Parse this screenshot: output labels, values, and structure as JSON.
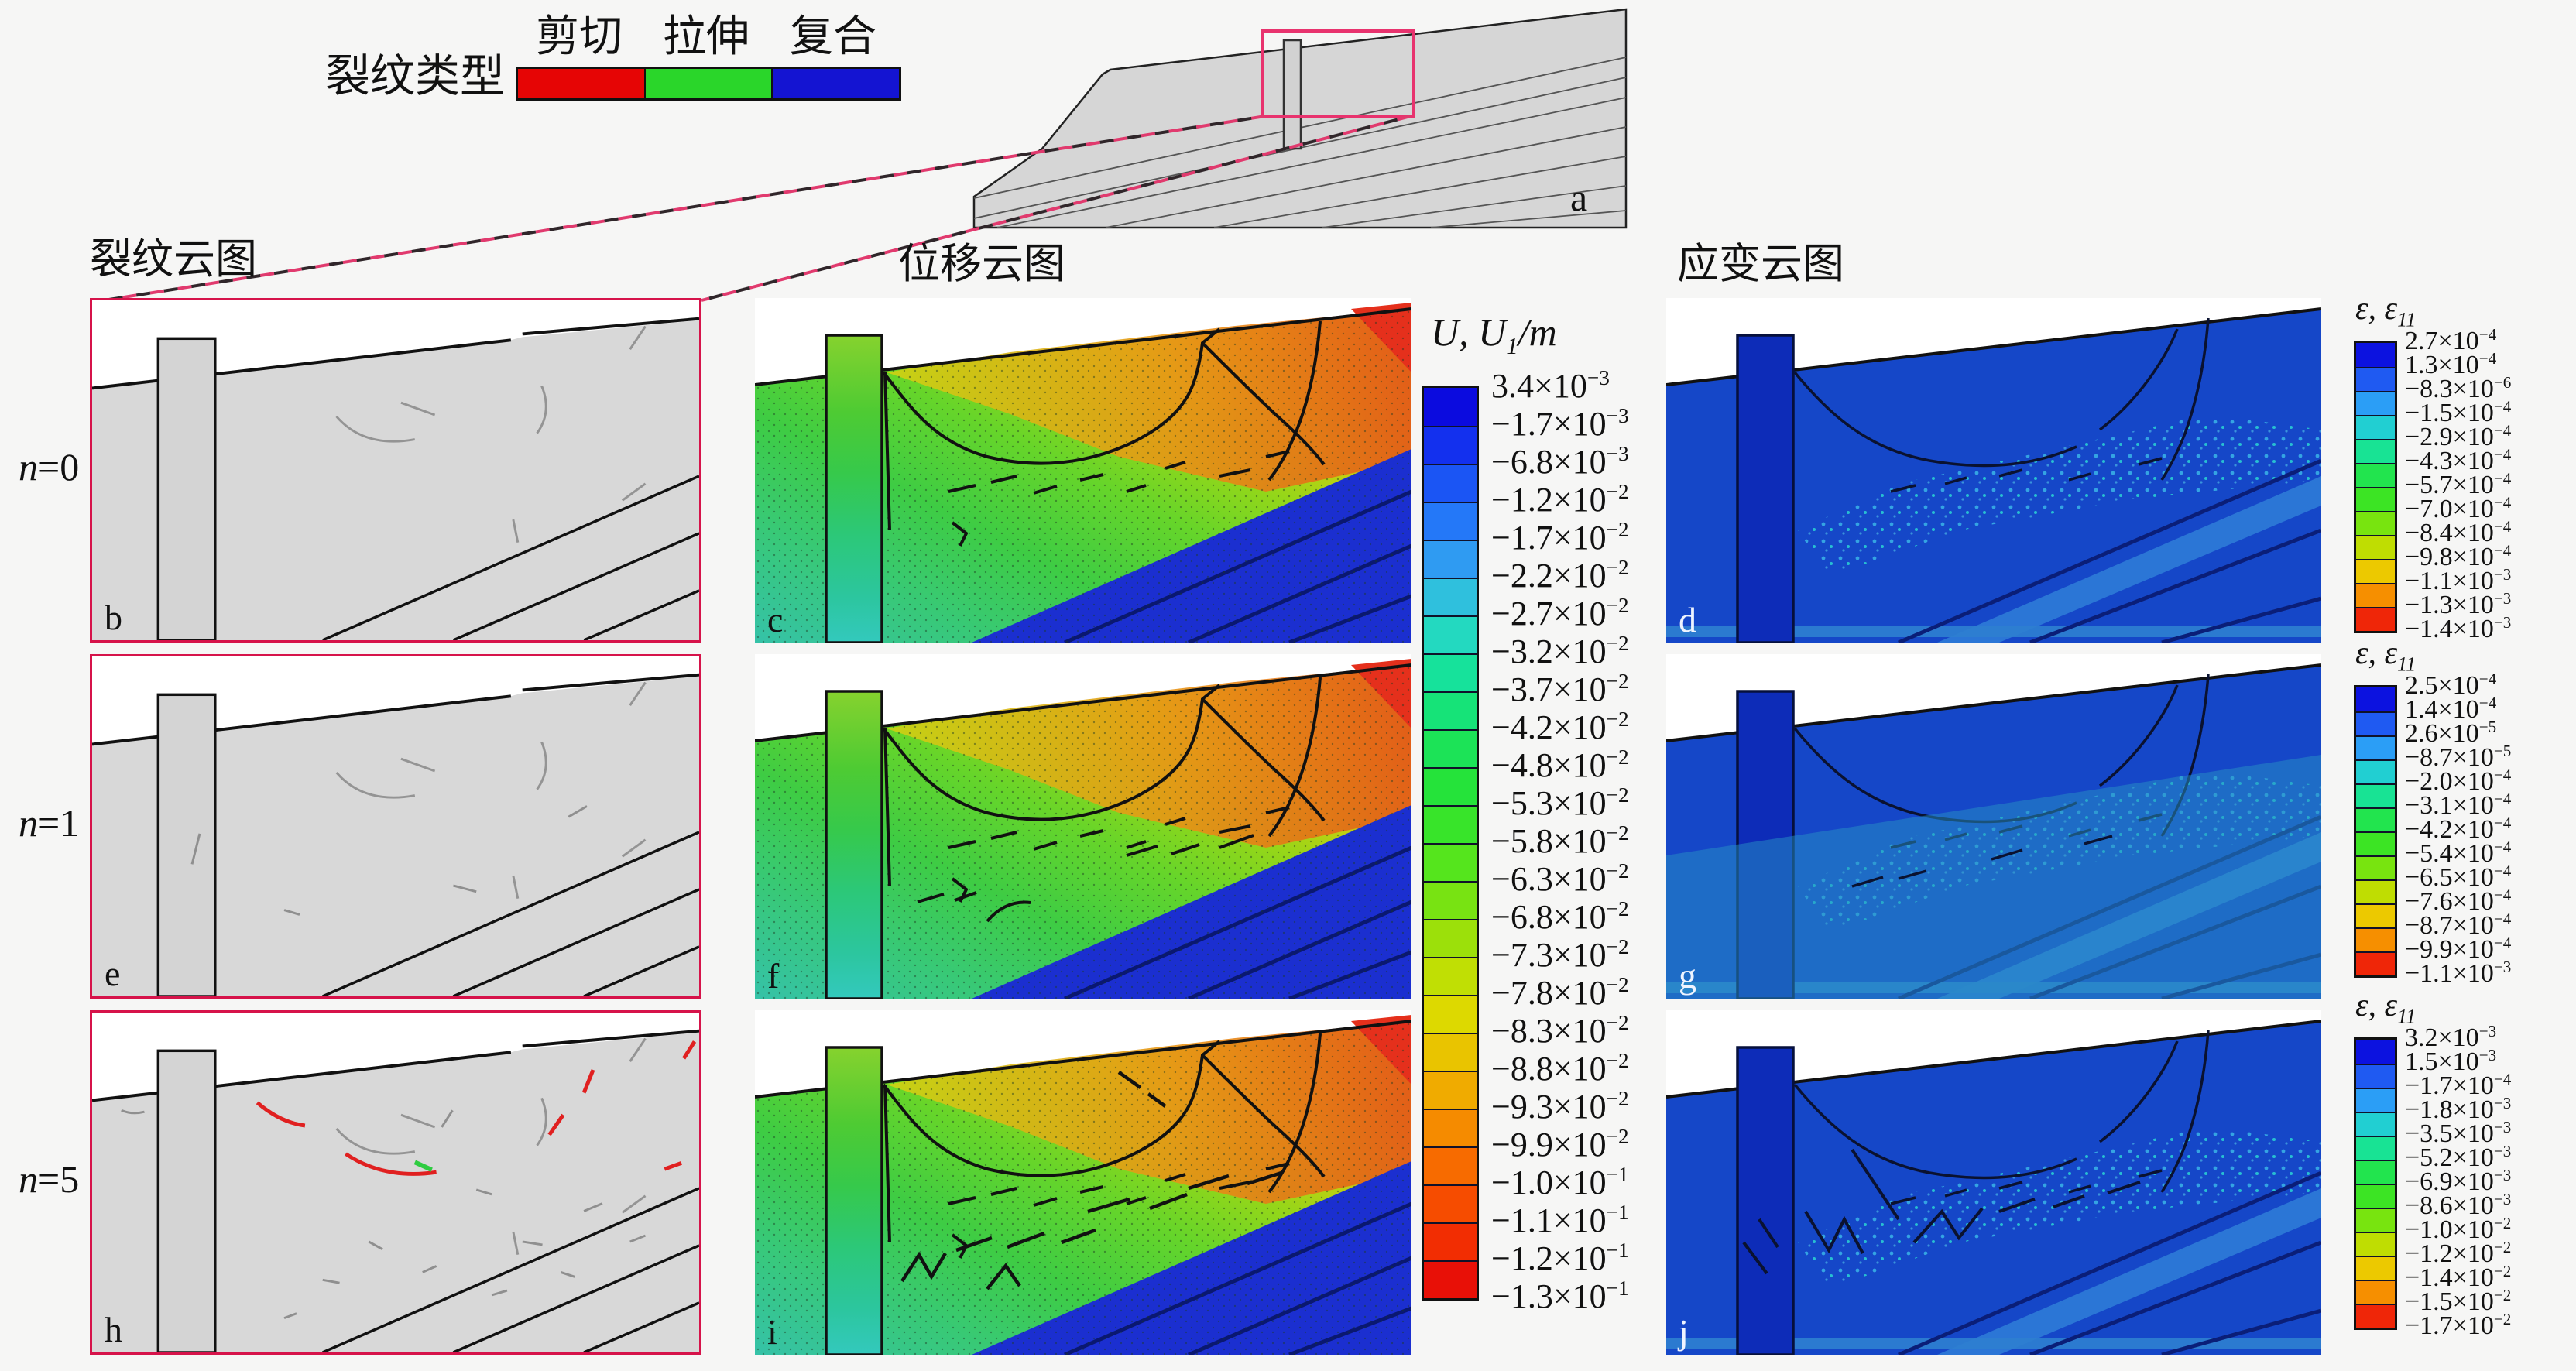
{
  "crack_type_legend": {
    "title": "裂纹类型",
    "items": [
      {
        "label": "剪切",
        "color": "#e60505"
      },
      {
        "label": "拉伸",
        "color": "#2ad62a"
      },
      {
        "label": "复合",
        "color": "#1414d2"
      }
    ]
  },
  "overview": {
    "label": "a"
  },
  "column_titles": {
    "crack": "裂纹云图",
    "displacement": "位移云图",
    "strain": "应变云图"
  },
  "row_labels": [
    {
      "sym": "n",
      "eq": "=0"
    },
    {
      "sym": "n",
      "eq": "=1"
    },
    {
      "sym": "n",
      "eq": "=5"
    }
  ],
  "panel_labels": {
    "crack": [
      "b",
      "e",
      "h"
    ],
    "displacement": [
      "c",
      "f",
      "i"
    ],
    "strain": [
      "d",
      "g",
      "j"
    ]
  },
  "displacement_colorbar": {
    "title": {
      "pre": "U, U",
      "sub": "1",
      "post": "/m"
    },
    "ticks": [
      {
        "m": "3.4",
        "e": "−3"
      },
      {
        "m": "−1.7",
        "e": "−3"
      },
      {
        "m": "−6.8",
        "e": "−3"
      },
      {
        "m": "−1.2",
        "e": "−2"
      },
      {
        "m": "−1.7",
        "e": "−2"
      },
      {
        "m": "−2.2",
        "e": "−2"
      },
      {
        "m": "−2.7",
        "e": "−2"
      },
      {
        "m": "−3.2",
        "e": "−2"
      },
      {
        "m": "−3.7",
        "e": "−2"
      },
      {
        "m": "−4.2",
        "e": "−2"
      },
      {
        "m": "−4.8",
        "e": "−2"
      },
      {
        "m": "−5.3",
        "e": "−2"
      },
      {
        "m": "−5.8",
        "e": "−2"
      },
      {
        "m": "−6.3",
        "e": "−2"
      },
      {
        "m": "−6.8",
        "e": "−2"
      },
      {
        "m": "−7.3",
        "e": "−2"
      },
      {
        "m": "−7.8",
        "e": "−2"
      },
      {
        "m": "−8.3",
        "e": "−2"
      },
      {
        "m": "−8.8",
        "e": "−2"
      },
      {
        "m": "−9.3",
        "e": "−2"
      },
      {
        "m": "−9.9",
        "e": "−2"
      },
      {
        "m": "−1.0",
        "e": "−1"
      },
      {
        "m": "−1.1",
        "e": "−1"
      },
      {
        "m": "−1.2",
        "e": "−1"
      },
      {
        "m": "−1.3",
        "e": "−1"
      }
    ],
    "colors": [
      "#0b0bdf",
      "#1330ee",
      "#1b55f4",
      "#2478f8",
      "#2f9bf2",
      "#2fc0dd",
      "#23d9c0",
      "#16e29b",
      "#16e378",
      "#1ce357",
      "#25e33a",
      "#38e42a",
      "#55e51d",
      "#78e312",
      "#9ce00a",
      "#c0df04",
      "#ddd900",
      "#e9c400",
      "#f0ab00",
      "#f58b00",
      "#f76b00",
      "#f64c00",
      "#f22d02",
      "#e81007"
    ]
  },
  "strain_colorbars": [
    {
      "title": {
        "pre": "ε, ε",
        "sub": "11",
        "post": ""
      },
      "ticks": [
        {
          "m": "2.7",
          "e": "−4"
        },
        {
          "m": "1.3",
          "e": "−4"
        },
        {
          "m": "−8.3",
          "e": "−6"
        },
        {
          "m": "−1.5",
          "e": "−4"
        },
        {
          "m": "−2.9",
          "e": "−4"
        },
        {
          "m": "−4.3",
          "e": "−4"
        },
        {
          "m": "−5.7",
          "e": "−4"
        },
        {
          "m": "−7.0",
          "e": "−4"
        },
        {
          "m": "−8.4",
          "e": "−4"
        },
        {
          "m": "−9.8",
          "e": "−4"
        },
        {
          "m": "−1.1",
          "e": "−3"
        },
        {
          "m": "−1.3",
          "e": "−3"
        },
        {
          "m": "−1.4",
          "e": "−3"
        }
      ],
      "colors": [
        "#0c12e0",
        "#1f5af2",
        "#2b9ef6",
        "#21cfd2",
        "#18e394",
        "#22e44e",
        "#3ce424",
        "#78e40f",
        "#bfdd02",
        "#ecc900",
        "#f68f00",
        "#ef2608"
      ]
    },
    {
      "title": {
        "pre": "ε, ε",
        "sub": "11",
        "post": ""
      },
      "ticks": [
        {
          "m": "2.5",
          "e": "−4"
        },
        {
          "m": "1.4",
          "e": "−4"
        },
        {
          "m": "2.6",
          "e": "−5"
        },
        {
          "m": "−8.7",
          "e": "−5"
        },
        {
          "m": "−2.0",
          "e": "−4"
        },
        {
          "m": "−3.1",
          "e": "−4"
        },
        {
          "m": "−4.2",
          "e": "−4"
        },
        {
          "m": "−5.4",
          "e": "−4"
        },
        {
          "m": "−6.5",
          "e": "−4"
        },
        {
          "m": "−7.6",
          "e": "−4"
        },
        {
          "m": "−8.7",
          "e": "−4"
        },
        {
          "m": "−9.9",
          "e": "−4"
        },
        {
          "m": "−1.1",
          "e": "−3"
        }
      ],
      "colors": [
        "#0c12e0",
        "#1f5af2",
        "#2b9ef6",
        "#21cfd2",
        "#18e394",
        "#22e44e",
        "#3ce424",
        "#78e40f",
        "#bfdd02",
        "#ecc900",
        "#f68f00",
        "#ef2608"
      ]
    },
    {
      "title": {
        "pre": "ε, ε",
        "sub": "11",
        "post": ""
      },
      "ticks": [
        {
          "m": "3.2",
          "e": "−3"
        },
        {
          "m": "1.5",
          "e": "−3"
        },
        {
          "m": "−1.7",
          "e": "−4"
        },
        {
          "m": "−1.8",
          "e": "−3"
        },
        {
          "m": "−3.5",
          "e": "−3"
        },
        {
          "m": "−5.2",
          "e": "−3"
        },
        {
          "m": "−6.9",
          "e": "−3"
        },
        {
          "m": "−8.6",
          "e": "−3"
        },
        {
          "m": "−1.0",
          "e": "−2"
        },
        {
          "m": "−1.2",
          "e": "−2"
        },
        {
          "m": "−1.4",
          "e": "−2"
        },
        {
          "m": "−1.5",
          "e": "−2"
        },
        {
          "m": "−1.7",
          "e": "−2"
        }
      ],
      "colors": [
        "#0c12e0",
        "#1f5af2",
        "#2b9ef6",
        "#21cfd2",
        "#18e394",
        "#22e44e",
        "#3ce424",
        "#78e40f",
        "#bfdd02",
        "#ecc900",
        "#f68f00",
        "#ef2608"
      ]
    }
  ],
  "chart_data": [
    {
      "type": "heatmap",
      "name": "crack_contours",
      "column_title": "裂纹云图",
      "panels": [
        "b",
        "e",
        "h"
      ],
      "iterations": [
        "n=0",
        "n=1",
        "n=5"
      ],
      "crack_type_classes": {
        "剪切": "red",
        "拉伸": "green",
        "复合": "blue"
      }
    },
    {
      "type": "heatmap",
      "name": "displacement_contours",
      "column_title": "位移云图",
      "panels": [
        "c",
        "f",
        "i"
      ],
      "iterations": [
        "n=0",
        "n=1",
        "n=5"
      ],
      "colorbar_title": "U, U1/m",
      "colorbar_ticks": [
        0.0034,
        -0.0017,
        -0.0068,
        -0.012,
        -0.017,
        -0.022,
        -0.027,
        -0.032,
        -0.037,
        -0.042,
        -0.048,
        -0.053,
        -0.058,
        -0.063,
        -0.068,
        -0.073,
        -0.078,
        -0.083,
        -0.088,
        -0.093,
        -0.099,
        -0.1,
        -0.11,
        -0.12,
        -0.13
      ],
      "range": [
        -0.13,
        0.0034
      ]
    },
    {
      "type": "heatmap",
      "name": "strain_contours",
      "column_title": "应变云图",
      "panels": [
        {
          "label": "d",
          "iteration": "n=0",
          "colorbar_title": "ε, ε11",
          "ticks": [
            0.00027,
            0.00013,
            -8.3e-06,
            -0.00015,
            -0.00029,
            -0.00043,
            -0.00057,
            -0.0007,
            -0.00084,
            -0.00098,
            -0.0011,
            -0.0013,
            -0.0014
          ]
        },
        {
          "label": "g",
          "iteration": "n=1",
          "colorbar_title": "ε, ε11",
          "ticks": [
            0.00025,
            0.00014,
            2.6e-05,
            -8.7e-05,
            -0.0002,
            -0.00031,
            -0.00042,
            -0.00054,
            -0.00065,
            -0.00076,
            -0.00087,
            -0.00099,
            -0.0011
          ]
        },
        {
          "label": "j",
          "iteration": "n=5",
          "colorbar_title": "ε, ε11",
          "ticks": [
            0.0032,
            0.0015,
            -0.00017,
            -0.0018,
            -0.0035,
            -0.0052,
            -0.0069,
            -0.0086,
            -0.01,
            -0.012,
            -0.014,
            -0.015,
            -0.017
          ]
        }
      ]
    },
    {
      "type": "diagram",
      "name": "overview_slope_model",
      "panel": "a"
    }
  ]
}
